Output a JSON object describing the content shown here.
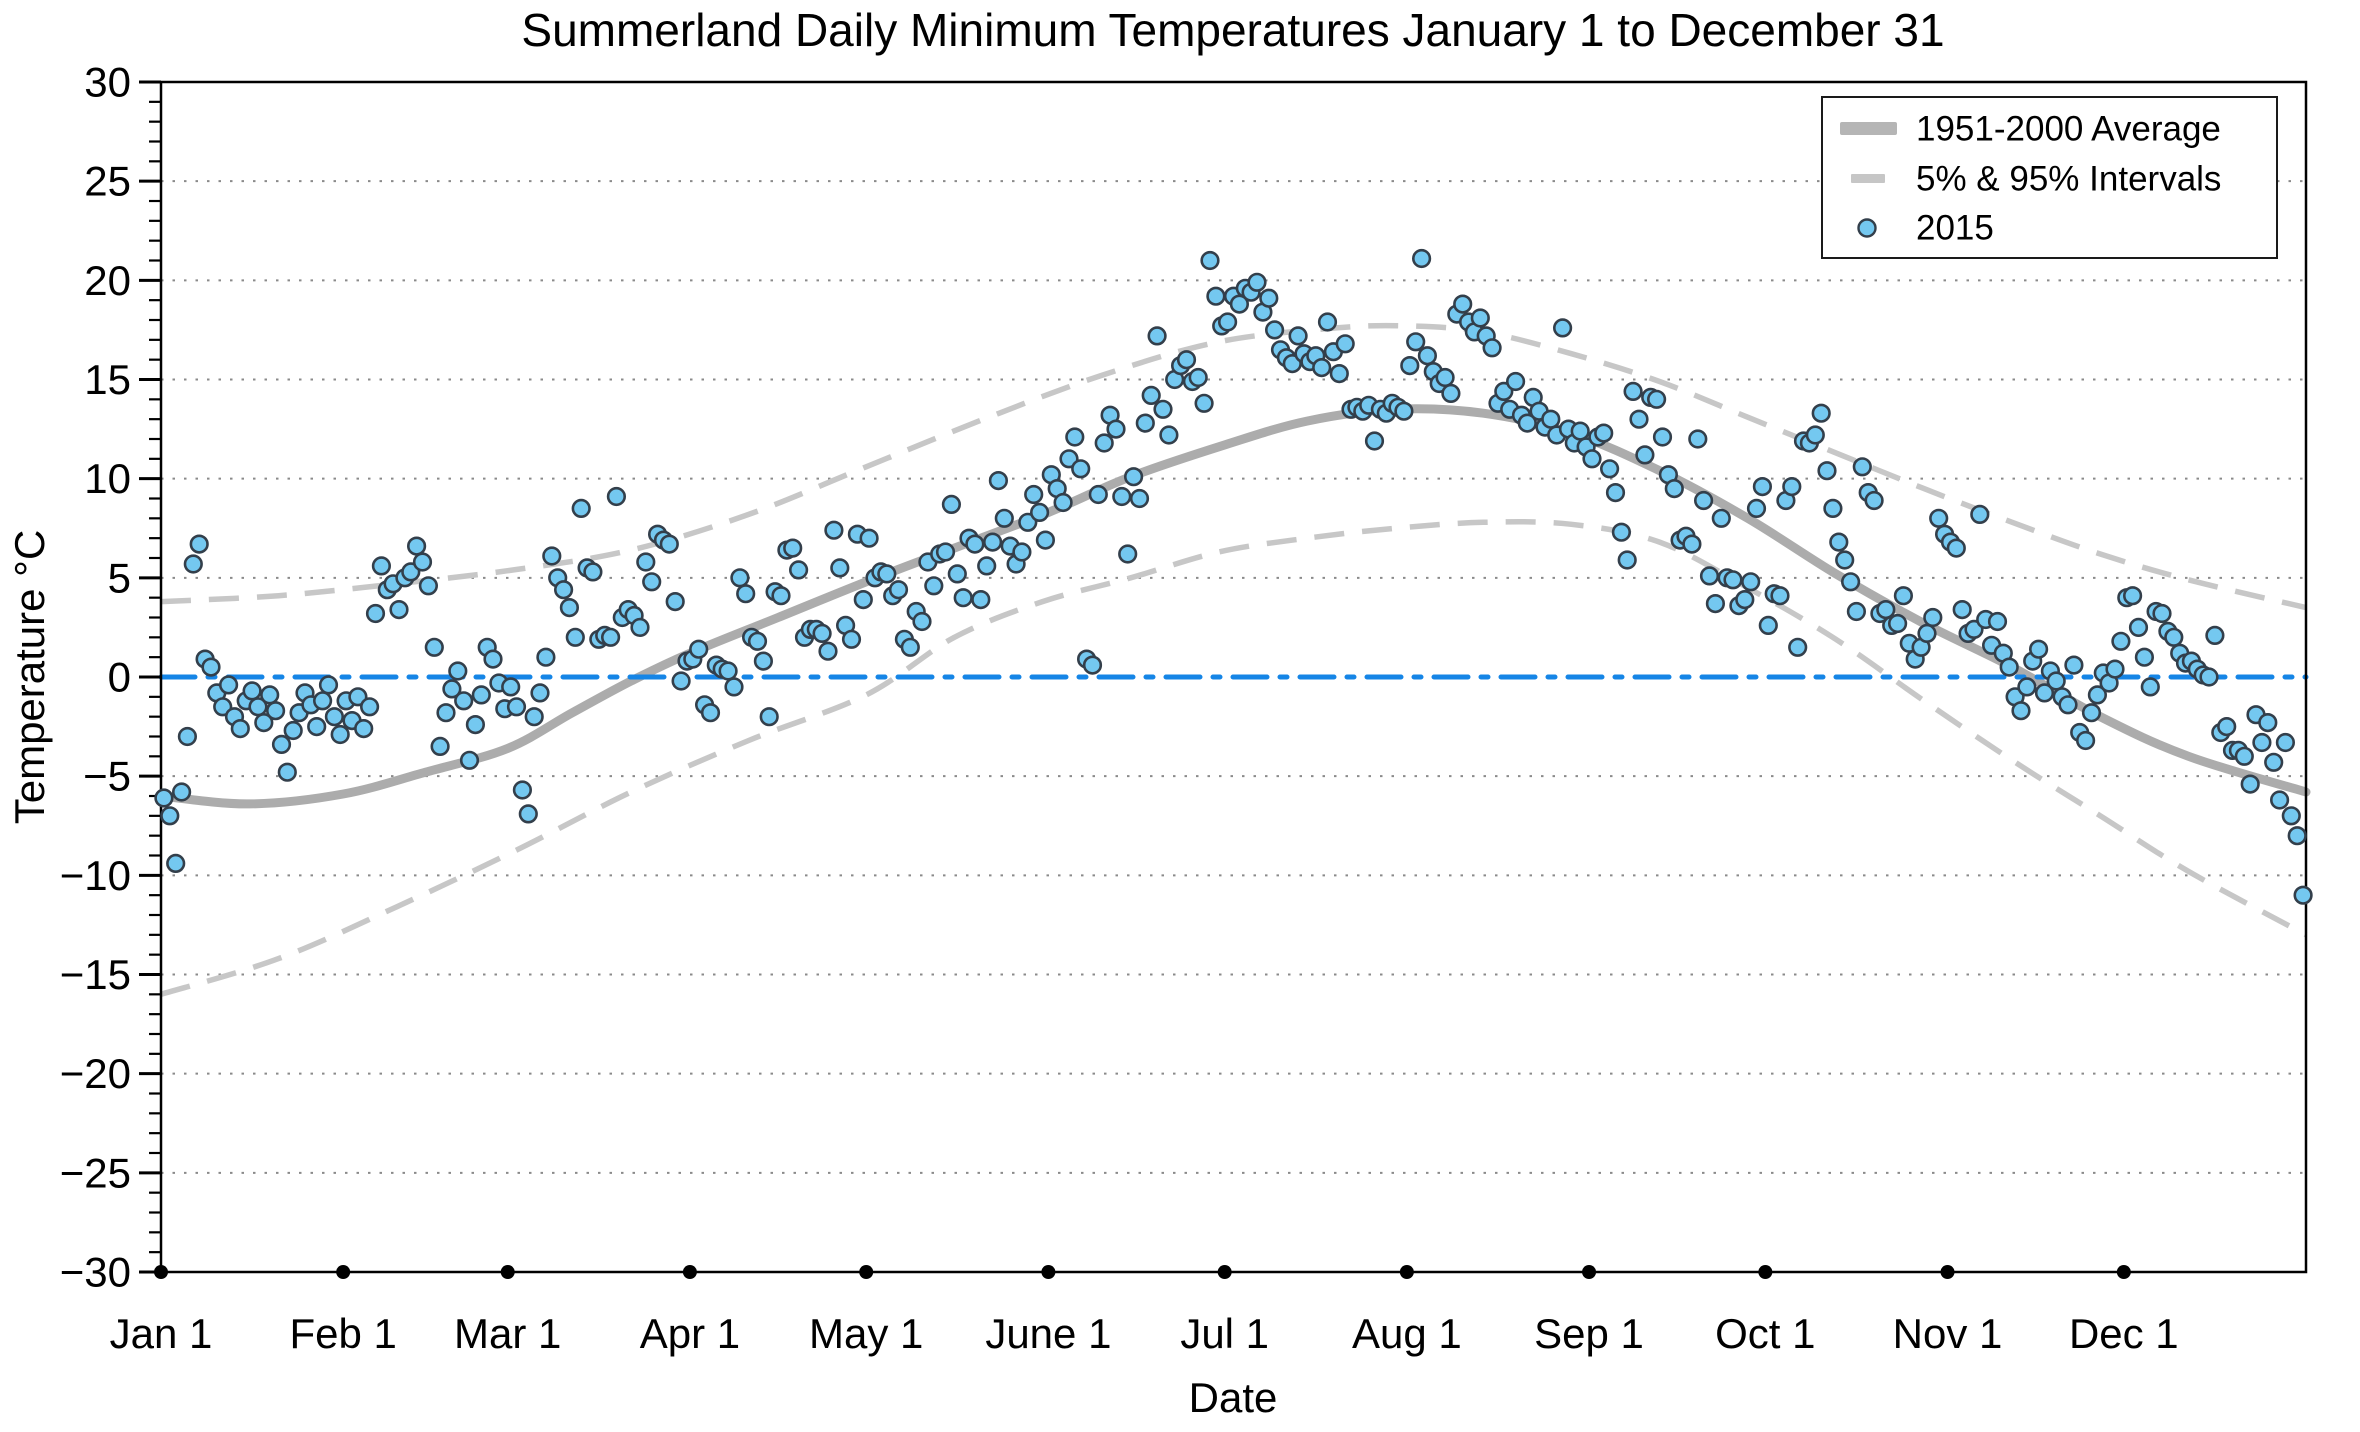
{
  "title": "Summerland Daily Minimum Temperatures January 1 to December 31",
  "colors": {
    "marker_fill": "#74C8F0",
    "marker_stroke": "#333F4B",
    "average_line": "#ACACAC",
    "interval_line": "#C7C7C7",
    "zero_line": "#1585E6",
    "gridline": "#8A8A8A",
    "frame": "#000000",
    "legend_swatch_average": "#B5B5B5",
    "legend_swatch_interval": "#C6C6C6"
  },
  "axes": {
    "x": {
      "label": "Date",
      "tick_labels": [
        "Jan 1",
        "Feb 1",
        "Mar 1",
        "Apr 1",
        "May 1",
        "June 1",
        "Jul 1",
        "Aug 1",
        "Sep 1",
        "Oct 1",
        "Nov 1",
        "Dec 1"
      ]
    },
    "y": {
      "label": "Temperature °C",
      "min": -30,
      "max": 30,
      "major_step": 5,
      "minor_step": 1,
      "tick_labels": [
        "30",
        "25",
        "20",
        "15",
        "10",
        "5",
        "0",
        "−5",
        "−10",
        "−15",
        "−20",
        "−25",
        "−30"
      ]
    }
  },
  "legend": {
    "items": [
      {
        "label": "1951-2000 Average",
        "swatch": "thick-gray-line"
      },
      {
        "label": "5% & 95% Intervals",
        "swatch": "gray-dash"
      },
      {
        "label": "2015",
        "swatch": "blue-circle"
      }
    ]
  },
  "chart_data": {
    "type": "scatter",
    "title": "Summerland Daily Minimum Temperatures January 1 to December 31",
    "xlabel": "Date",
    "ylabel": "Temperature °C",
    "ylim": [
      -30,
      30
    ],
    "x_range_days": [
      0,
      365
    ],
    "grid": "horizontal dotted every 5 °C",
    "zero_reference_line_c": 0,
    "legend_position": "top-right",
    "months": [
      {
        "label": "Jan 1",
        "day": 0
      },
      {
        "label": "Feb 1",
        "day": 31
      },
      {
        "label": "Mar 1",
        "day": 59
      },
      {
        "label": "Apr 1",
        "day": 90
      },
      {
        "label": "May 1",
        "day": 120
      },
      {
        "label": "June 1",
        "day": 151
      },
      {
        "label": "Jul 1",
        "day": 181
      },
      {
        "label": "Aug 1",
        "day": 212
      },
      {
        "label": "Sep 1",
        "day": 243
      },
      {
        "label": "Oct 1",
        "day": 273
      },
      {
        "label": "Nov 1",
        "day": 304
      },
      {
        "label": "Dec 1",
        "day": 334
      }
    ],
    "series": [
      {
        "name": "1951-2000 Average",
        "role": "average",
        "type": "line",
        "points_day_temp": [
          [
            0,
            -6.0
          ],
          [
            15,
            -6.4
          ],
          [
            31,
            -5.9
          ],
          [
            45,
            -4.8
          ],
          [
            59,
            -3.6
          ],
          [
            70,
            -1.8
          ],
          [
            80,
            -0.2
          ],
          [
            90,
            1.2
          ],
          [
            105,
            3.0
          ],
          [
            120,
            4.8
          ],
          [
            135,
            6.5
          ],
          [
            151,
            8.3
          ],
          [
            165,
            10.1
          ],
          [
            181,
            11.7
          ],
          [
            195,
            12.9
          ],
          [
            210,
            13.5
          ],
          [
            225,
            13.3
          ],
          [
            240,
            12.3
          ],
          [
            255,
            10.4
          ],
          [
            270,
            8.0
          ],
          [
            285,
            5.2
          ],
          [
            300,
            2.7
          ],
          [
            315,
            0.5
          ],
          [
            330,
            -2.0
          ],
          [
            345,
            -4.0
          ],
          [
            365,
            -5.8
          ]
        ]
      },
      {
        "name": "95% Interval",
        "role": "upper",
        "type": "dashed-line",
        "points_day_temp": [
          [
            0,
            3.8
          ],
          [
            20,
            4.1
          ],
          [
            40,
            4.7
          ],
          [
            60,
            5.4
          ],
          [
            80,
            6.4
          ],
          [
            100,
            8.2
          ],
          [
            120,
            10.6
          ],
          [
            140,
            13.0
          ],
          [
            160,
            15.2
          ],
          [
            180,
            16.9
          ],
          [
            200,
            17.6
          ],
          [
            212,
            17.7
          ],
          [
            225,
            17.4
          ],
          [
            240,
            16.3
          ],
          [
            255,
            14.9
          ],
          [
            270,
            13.1
          ],
          [
            285,
            11.3
          ],
          [
            300,
            9.5
          ],
          [
            315,
            7.8
          ],
          [
            330,
            6.2
          ],
          [
            345,
            4.9
          ],
          [
            365,
            3.5
          ]
        ]
      },
      {
        "name": "5% Interval",
        "role": "lower",
        "type": "dashed-line",
        "points_day_temp": [
          [
            0,
            -16.0
          ],
          [
            20,
            -14.2
          ],
          [
            40,
            -11.6
          ],
          [
            60,
            -8.8
          ],
          [
            80,
            -5.8
          ],
          [
            100,
            -3.2
          ],
          [
            120,
            -0.9
          ],
          [
            135,
            2.0
          ],
          [
            150,
            3.8
          ],
          [
            165,
            5.0
          ],
          [
            180,
            6.3
          ],
          [
            195,
            7.0
          ],
          [
            210,
            7.5
          ],
          [
            225,
            7.8
          ],
          [
            240,
            7.7
          ],
          [
            255,
            6.8
          ],
          [
            270,
            4.5
          ],
          [
            285,
            1.9
          ],
          [
            300,
            -1.2
          ],
          [
            315,
            -4.2
          ],
          [
            330,
            -7.0
          ],
          [
            345,
            -9.8
          ],
          [
            365,
            -13.0
          ]
        ]
      },
      {
        "name": "2015",
        "role": "observations",
        "type": "scatter",
        "daily_min_c": [
          -6.1,
          -7.0,
          -9.4,
          -5.8,
          -3.0,
          5.7,
          6.7,
          0.9,
          0.5,
          -0.8,
          -1.5,
          -0.4,
          -2.0,
          -2.6,
          -1.2,
          -0.7,
          -1.5,
          -2.3,
          -0.9,
          -1.7,
          -3.4,
          -4.8,
          -2.7,
          -1.8,
          -0.8,
          -1.4,
          -2.5,
          -1.2,
          -0.4,
          -2.0,
          -2.9,
          -1.2,
          -2.2,
          -1.0,
          -2.6,
          -1.5,
          3.2,
          5.6,
          4.4,
          4.7,
          3.4,
          5.0,
          5.3,
          6.6,
          5.8,
          4.6,
          1.5,
          -3.5,
          -1.8,
          -0.6,
          0.3,
          -1.2,
          -4.2,
          -2.4,
          -0.9,
          1.5,
          0.9,
          -0.3,
          -1.6,
          -0.5,
          -1.5,
          -5.7,
          -6.9,
          -2.0,
          -0.8,
          1.0,
          6.1,
          5.0,
          4.4,
          3.5,
          2.0,
          8.5,
          5.5,
          5.3,
          1.9,
          2.1,
          2.0,
          9.1,
          3.0,
          3.4,
          3.1,
          2.5,
          5.8,
          4.8,
          7.2,
          6.9,
          6.7,
          3.8,
          -0.2,
          0.8,
          0.9,
          1.4,
          -1.4,
          -1.8,
          0.6,
          0.4,
          0.3,
          -0.5,
          5.0,
          4.2,
          2.0,
          1.8,
          0.8,
          -2.0,
          4.3,
          4.1,
          6.4,
          6.5,
          5.4,
          2.0,
          2.4,
          2.4,
          2.2,
          1.3,
          7.4,
          5.5,
          2.6,
          1.9,
          7.2,
          3.9,
          7.0,
          5.0,
          5.3,
          5.2,
          4.1,
          4.4,
          1.9,
          1.5,
          3.3,
          2.8,
          5.8,
          4.6,
          6.2,
          6.3,
          8.7,
          5.2,
          4.0,
          7.0,
          6.7,
          3.9,
          5.6,
          6.8,
          9.9,
          8.0,
          6.6,
          5.7,
          6.3,
          7.8,
          9.2,
          8.3,
          6.9,
          10.2,
          9.5,
          8.8,
          11.0,
          12.1,
          10.5,
          0.9,
          0.6,
          9.2,
          11.8,
          13.2,
          12.5,
          9.1,
          6.2,
          10.1,
          9.0,
          12.8,
          14.2,
          17.2,
          13.5,
          12.2,
          15.0,
          15.7,
          16.0,
          14.9,
          15.1,
          13.8,
          21.0,
          19.2,
          17.7,
          17.9,
          19.2,
          18.8,
          19.6,
          19.4,
          19.9,
          18.4,
          19.1,
          17.5,
          16.5,
          16.1,
          15.8,
          17.2,
          16.3,
          15.9,
          16.2,
          15.6,
          17.9,
          16.4,
          15.3,
          16.8,
          13.5,
          13.6,
          13.4,
          13.7,
          11.9,
          13.5,
          13.3,
          13.8,
          13.6,
          13.4,
          15.7,
          16.9,
          21.1,
          16.2,
          15.4,
          14.8,
          15.1,
          14.3,
          18.3,
          18.8,
          17.9,
          17.4,
          18.1,
          17.2,
          16.6,
          13.8,
          14.4,
          13.5,
          14.9,
          13.2,
          12.8,
          14.1,
          13.4,
          12.6,
          13.0,
          12.2,
          17.6,
          12.5,
          11.8,
          12.4,
          11.6,
          11.0,
          12.1,
          12.3,
          10.5,
          9.3,
          7.3,
          5.9,
          14.4,
          13.0,
          11.2,
          14.1,
          14.0,
          12.1,
          10.2,
          9.5,
          6.9,
          7.1,
          6.7,
          12.0,
          8.9,
          5.1,
          3.7,
          8.0,
          5.0,
          4.9,
          3.6,
          3.9,
          4.8,
          8.5,
          9.6,
          2.6,
          4.2,
          4.1,
          8.9,
          9.6,
          1.5,
          11.9,
          11.8,
          12.2,
          13.3,
          10.4,
          8.5,
          6.8,
          5.9,
          4.8,
          3.3,
          10.6,
          9.3,
          8.9,
          3.2,
          3.4,
          2.6,
          2.7,
          4.1,
          1.7,
          0.9,
          1.5,
          2.2,
          3.0,
          8.0,
          7.2,
          6.8,
          6.5,
          3.4,
          2.2,
          2.4,
          8.2,
          2.9,
          1.6,
          2.8,
          1.2,
          0.5,
          -1.0,
          -1.7,
          -0.5,
          0.8,
          1.4,
          -0.8,
          0.3,
          -0.2,
          -1.0,
          -1.4,
          0.6,
          -2.8,
          -3.2,
          -1.8,
          -0.9,
          0.2,
          -0.3,
          0.4,
          1.8,
          4.0,
          4.1,
          2.5,
          1.0,
          -0.5,
          3.3,
          3.2,
          2.3,
          2.0,
          1.2,
          0.7,
          0.8,
          0.4,
          0.1,
          0.0,
          2.1,
          -2.8,
          -2.5,
          -3.7,
          -3.7,
          -4.0,
          -5.4,
          -1.9,
          -3.3,
          -2.3,
          -4.3,
          -6.2,
          -3.3,
          -7.0,
          -8.0,
          -11.0
        ]
      }
    ]
  }
}
